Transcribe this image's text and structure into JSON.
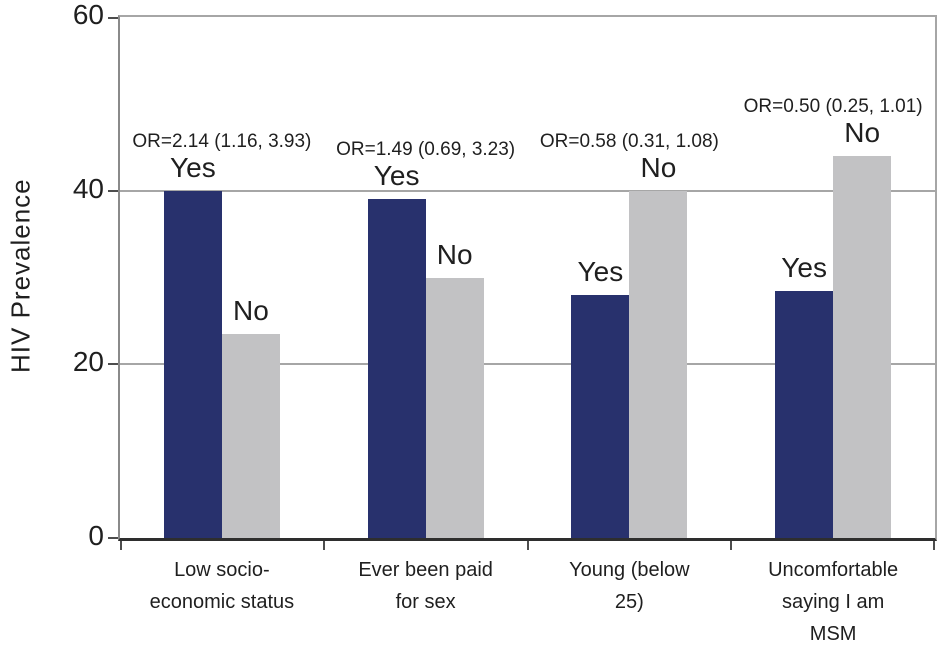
{
  "chart_data": {
    "type": "bar",
    "title": "",
    "ylabel": "HIV Prevalence",
    "xlabel": "",
    "ylim": [
      0,
      60
    ],
    "yticks": [
      0,
      20,
      40,
      60
    ],
    "grid": true,
    "legend_position": "none",
    "categories": [
      "Low socio-\neconomic status",
      "Ever been paid\nfor sex",
      "Young (below\n25)",
      "Uncomfortable\nsaying I am\nMSM"
    ],
    "series": [
      {
        "name": "Yes",
        "color": "#28316d",
        "values": [
          40,
          39,
          28,
          28.5
        ]
      },
      {
        "name": "No",
        "color": "#c2c2c4",
        "values": [
          23.5,
          30,
          40,
          44
        ]
      }
    ],
    "annotations": [
      {
        "group": 0,
        "text": "OR=2.14 (1.16, 3.93)"
      },
      {
        "group": 1,
        "text": "OR=1.49 (0.69, 3.23)"
      },
      {
        "group": 2,
        "text": "OR=0.58 (0.31, 1.08)"
      },
      {
        "group": 3,
        "text": "OR=0.50 (0.25, 1.01)"
      }
    ],
    "axis_colors": {
      "gridline": "#a6a6a6",
      "bottom_axis": "#2e2e2e",
      "left_axis": "#8a8a8a"
    }
  }
}
